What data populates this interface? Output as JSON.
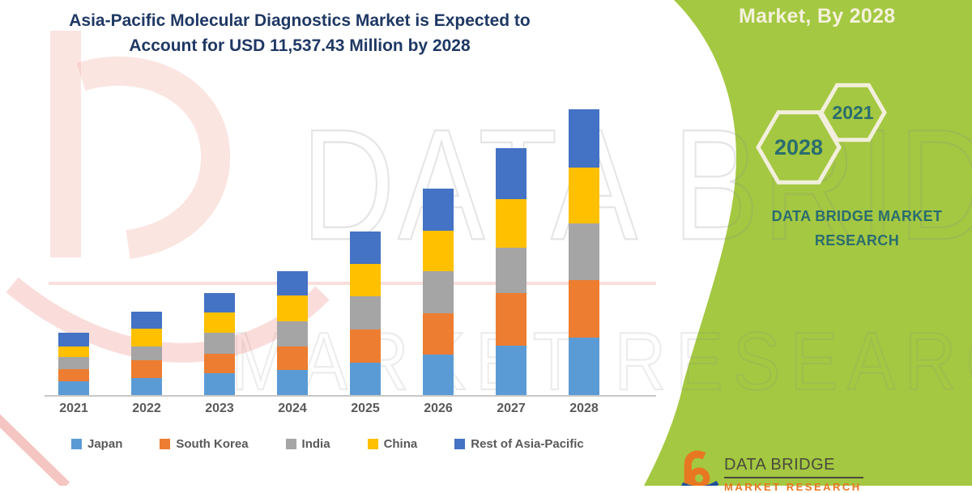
{
  "title": {
    "line1": "Asia-Pacific Molecular Diagnostics Market is Expected to",
    "line2": "Account for USD 11,537.43 Million by 2028"
  },
  "chart_data": {
    "type": "bar",
    "stacked": true,
    "title": "Asia-Pacific Molecular Diagnostics Market is Expected to Account for USD 11,537.43 Million by 2028",
    "unit": "USD Million (estimated)",
    "note": "No y-axis is shown in the figure; values are estimated from bar segment heights, scaled so the 2028 total matches the USD 11,537.43 million headline.",
    "categories": [
      "2021",
      "2022",
      "2023",
      "2024",
      "2025",
      "2026",
      "2027",
      "2028"
    ],
    "series": [
      {
        "name": "Japan",
        "color": "#5B9BD5",
        "values": [
          551,
          683,
          891,
          1023,
          1320,
          1650,
          1980,
          2322
        ]
      },
      {
        "name": "South Korea",
        "color": "#ED7D31",
        "values": [
          505,
          716,
          769,
          934,
          1320,
          1650,
          2145,
          2311
        ]
      },
      {
        "name": "India",
        "color": "#A5A5A5",
        "values": [
          472,
          551,
          858,
          1023,
          1343,
          1706,
          1838,
          2311
        ]
      },
      {
        "name": "China",
        "color": "#FFC000",
        "values": [
          419,
          716,
          815,
          1046,
          1297,
          1617,
          1957,
          2246
        ]
      },
      {
        "name": "Rest of Asia-Pacific",
        "color": "#4472C4",
        "values": [
          571,
          706,
          802,
          990,
          1310,
          1706,
          2036,
          2347
        ]
      }
    ],
    "totals_estimated": [
      2518,
      3372,
      4135,
      5016,
      6590,
      8329,
      9956,
      11537
    ],
    "legend_position": "bottom",
    "grid": false,
    "y_axis_visible": false
  },
  "side_panel": {
    "subtitle": "Market, By 2028",
    "hexagons": [
      {
        "label": "2028"
      },
      {
        "label": "2021"
      }
    ],
    "brand_line1": "DATA BRIDGE MARKET",
    "brand_line2": "RESEARCH",
    "colors": {
      "panel_green": "#A4C841",
      "hex_outline": "#F2EFDC",
      "teal_text": "#2B6D6F"
    }
  },
  "logo": {
    "name": "DATA BRIDGE",
    "tagline": "MARKET RESEARCH",
    "glyph_orange": "#E87722",
    "swoosh_blue": "#1F4E9C"
  },
  "watermark": {
    "line1": "DATA BRIDGE",
    "line2": "MARKET RESEARCH"
  }
}
